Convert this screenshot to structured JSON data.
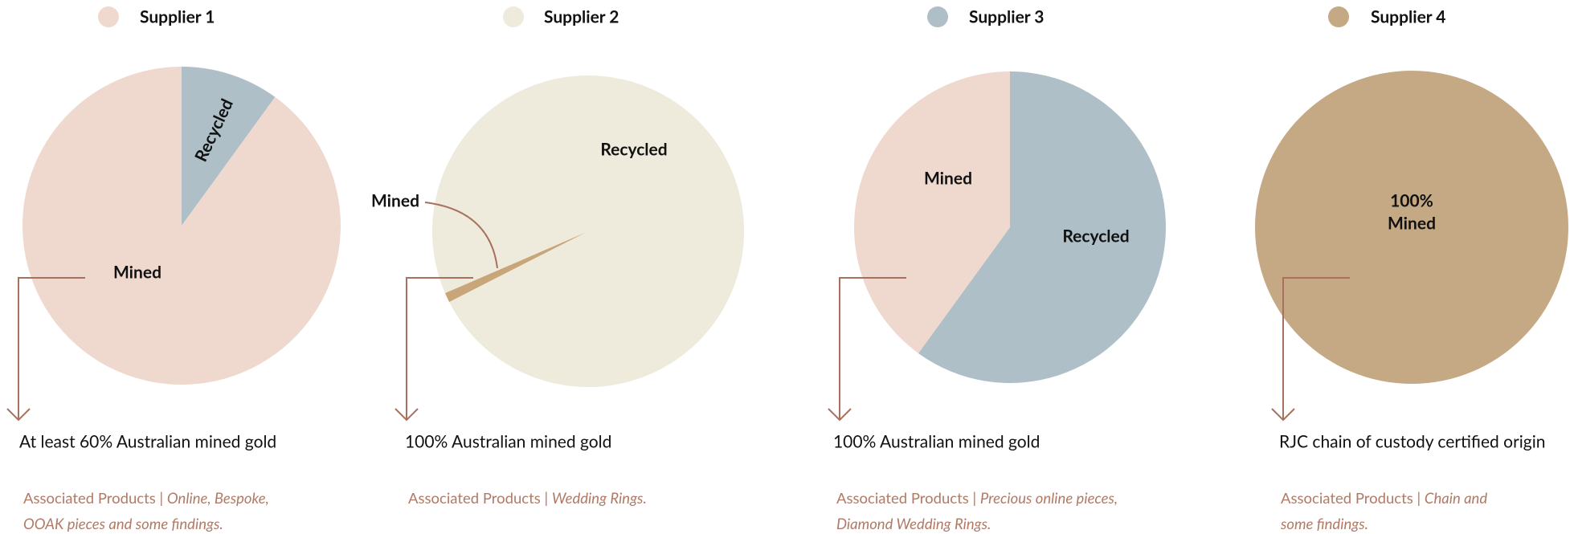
{
  "chart_data": [
    {
      "type": "pie",
      "title": "Supplier 1",
      "color": "#efd9ce",
      "categories": [
        "Recycled",
        "Mined"
      ],
      "values": [
        10,
        90
      ],
      "colors": [
        "#aebfc7",
        "#efd9ce"
      ],
      "start_angle": 0,
      "caption": "At least 60% Australian mined gold",
      "products_label": "Associated Products |",
      "products": [
        "Online, Bespoke,",
        "OOAK pieces and some findings."
      ]
    },
    {
      "type": "pie",
      "title": "Supplier 2",
      "color": "#eeeadc",
      "categories": [
        "Mined",
        "Recycled"
      ],
      "values": [
        1,
        99
      ],
      "colors": [
        "#c9a67a",
        "#eeeadc"
      ],
      "start_angle": 243,
      "caption": "100% Australian mined gold",
      "products_label": "Associated Products |",
      "products": [
        "Wedding Rings."
      ]
    },
    {
      "type": "pie",
      "title": "Supplier 3",
      "color": "#aebfc7",
      "categories": [
        "Recycled",
        "Mined"
      ],
      "values": [
        60,
        40
      ],
      "colors": [
        "#aebfc7",
        "#efd9ce"
      ],
      "start_angle": 0,
      "caption": "100% Australian mined gold",
      "products_label": "Associated Products |",
      "products": [
        "Precious online pieces,",
        "Diamond Wedding Rings."
      ]
    },
    {
      "type": "pie",
      "title": "Supplier 4",
      "color": "#c4a984",
      "categories": [
        "Mined"
      ],
      "values": [
        100
      ],
      "value_labels": [
        "100%"
      ],
      "colors": [
        "#c4a984"
      ],
      "start_angle": 0,
      "caption": "RJC chain of custody certified origin",
      "products_label": "Associated Products |",
      "products": [
        "Chain and",
        "some findings."
      ]
    }
  ]
}
